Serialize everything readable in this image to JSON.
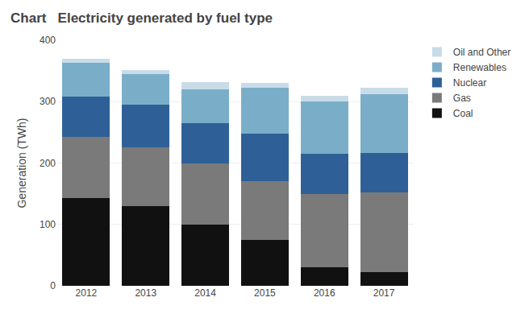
{
  "chart_data": {
    "type": "bar",
    "stacked": true,
    "title": "Electricity generated by fuel type",
    "annotations": [
      "Chart"
    ],
    "ylabel": "Generation (TWh)",
    "categories": [
      "2012",
      "2013",
      "2014",
      "2015",
      "2016",
      "2017"
    ],
    "series": [
      {
        "name": "Coal",
        "color": "#111111",
        "values": [
          143,
          130,
          100,
          75,
          30,
          22
        ]
      },
      {
        "name": "Gas",
        "color": "#7a7a7a",
        "values": [
          100,
          95,
          100,
          95,
          120,
          130
        ]
      },
      {
        "name": "Nuclear",
        "color": "#2e6097",
        "values": [
          65,
          70,
          65,
          78,
          65,
          65
        ]
      },
      {
        "name": "Renewables",
        "color": "#7aaec8",
        "values": [
          55,
          50,
          55,
          75,
          85,
          95
        ]
      },
      {
        "name": "Oil and Other",
        "color": "#c8dce8",
        "values": [
          7,
          7,
          12,
          7,
          10,
          10
        ]
      }
    ],
    "ylim": [
      0,
      400
    ],
    "yticks": [
      0,
      100,
      200,
      300,
      400
    ],
    "grid": true,
    "legend": "upper right"
  }
}
